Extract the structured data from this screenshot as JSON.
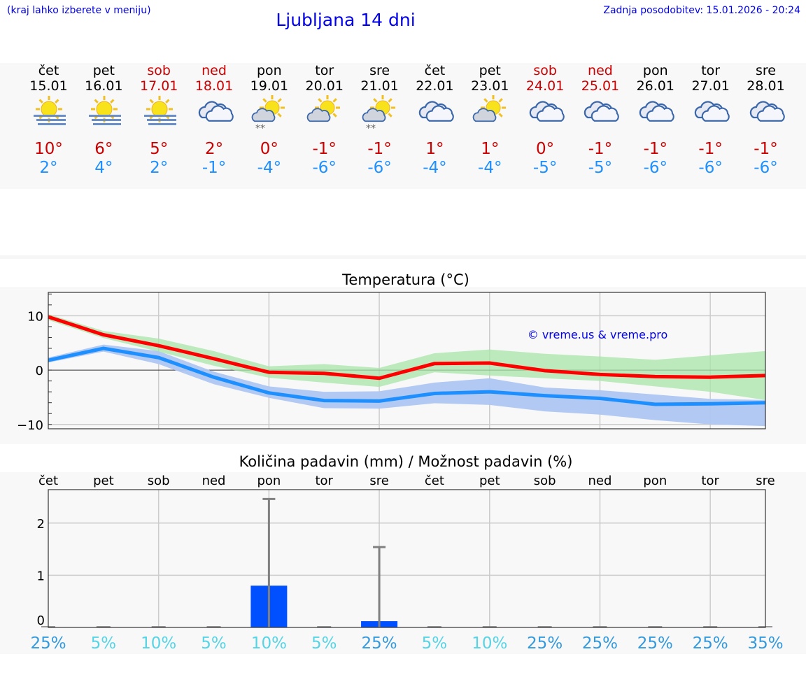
{
  "header": {
    "hint": "(kraj lahko izberete v meniju)",
    "title": "Ljubljana 14 dni",
    "updated": "Zadnja posodobitev: 15.01.2026 - 20:24"
  },
  "days": [
    {
      "name": "čet",
      "date": "15.01",
      "weekend": false,
      "icon": "sun-fog",
      "max": "10°",
      "min": "2°"
    },
    {
      "name": "pet",
      "date": "16.01",
      "weekend": false,
      "icon": "sun-fog",
      "max": "6°",
      "min": "4°"
    },
    {
      "name": "sob",
      "date": "17.01",
      "weekend": true,
      "icon": "sun-fog",
      "max": "5°",
      "min": "2°"
    },
    {
      "name": "ned",
      "date": "18.01",
      "weekend": true,
      "icon": "cloudy",
      "max": "2°",
      "min": "-1°"
    },
    {
      "name": "pon",
      "date": "19.01",
      "weekend": false,
      "icon": "partly-cloudy-snow",
      "max": "0°",
      "min": "-4°"
    },
    {
      "name": "tor",
      "date": "20.01",
      "weekend": false,
      "icon": "partly-cloudy",
      "max": "-1°",
      "min": "-6°"
    },
    {
      "name": "sre",
      "date": "21.01",
      "weekend": false,
      "icon": "partly-cloudy-snow",
      "max": "-1°",
      "min": "-6°"
    },
    {
      "name": "čet",
      "date": "22.01",
      "weekend": false,
      "icon": "cloudy",
      "max": "1°",
      "min": "-4°"
    },
    {
      "name": "pet",
      "date": "23.01",
      "weekend": false,
      "icon": "partly-cloudy",
      "max": "1°",
      "min": "-4°"
    },
    {
      "name": "sob",
      "date": "24.01",
      "weekend": true,
      "icon": "cloudy",
      "max": "0°",
      "min": "-5°"
    },
    {
      "name": "ned",
      "date": "25.01",
      "weekend": true,
      "icon": "cloudy",
      "max": "-1°",
      "min": "-5°"
    },
    {
      "name": "pon",
      "date": "26.01",
      "weekend": false,
      "icon": "cloudy",
      "max": "-1°",
      "min": "-6°"
    },
    {
      "name": "tor",
      "date": "27.01",
      "weekend": false,
      "icon": "cloudy",
      "max": "-1°",
      "min": "-6°"
    },
    {
      "name": "sre",
      "date": "28.01",
      "weekend": false,
      "icon": "cloudy",
      "max": "-1°",
      "min": "-6°"
    }
  ],
  "colors": {
    "max": "#cc0000",
    "min": "#1e90ff",
    "max_line": "#ff0000",
    "max_band": "#a8e6a8",
    "min_line": "#1e8fff",
    "min_band": "#adc6f2",
    "bar": "#0050ff",
    "error": "#808080",
    "pct_high": "#3399dd",
    "pct_low": "#55d4e6"
  },
  "chart_data": [
    {
      "type": "line",
      "title": "Temperatura (°C)",
      "watermark": "© vreme.us & vreme.pro",
      "ylim": [
        -10.8,
        14.3
      ],
      "yticks": [
        {
          "v": 10,
          "label": "10"
        },
        {
          "v": 0,
          "label": "0"
        },
        {
          "v": -10,
          "label": "−10"
        }
      ],
      "grid": true,
      "series": [
        {
          "name": "max",
          "values": [
            9.8,
            6.5,
            4.5,
            2.1,
            -0.4,
            -0.6,
            -1.5,
            1.2,
            1.3,
            -0.1,
            -0.8,
            -1.2,
            -1.3,
            -1.0
          ],
          "upper": [
            10.3,
            7.2,
            5.8,
            3.5,
            0.7,
            1.1,
            0.4,
            3.1,
            3.8,
            3.0,
            2.5,
            1.9,
            2.7,
            3.5
          ],
          "lower": [
            9.2,
            5.9,
            3.4,
            0.8,
            -1.4,
            -2.3,
            -3.1,
            -0.4,
            -1.0,
            -1.5,
            -2.0,
            -3.0,
            -4.0,
            -5.5
          ]
        },
        {
          "name": "min",
          "values": [
            1.8,
            4.0,
            2.3,
            -1.3,
            -4.2,
            -5.6,
            -5.7,
            -4.3,
            -4.0,
            -4.7,
            -5.2,
            -6.3,
            -6.2,
            -6.0
          ],
          "upper": [
            2.3,
            4.7,
            3.5,
            -0.3,
            -3.0,
            -4.0,
            -3.9,
            -2.3,
            -1.5,
            -3.2,
            -3.7,
            -4.5,
            -5.3,
            -5.5
          ],
          "lower": [
            1.4,
            3.4,
            1.1,
            -2.6,
            -5.1,
            -7.0,
            -7.1,
            -6.1,
            -6.4,
            -7.6,
            -8.2,
            -9.2,
            -10.0,
            -10.3
          ]
        }
      ]
    },
    {
      "type": "bar",
      "title": "Količina padavin (mm) / Možnost padavin (%)",
      "categories": [
        "čet",
        "pet",
        "sob",
        "ned",
        "pon",
        "tor",
        "sre",
        "čet",
        "pet",
        "sob",
        "ned",
        "pon",
        "tor",
        "sre"
      ],
      "values": [
        0,
        0,
        0,
        0,
        0.8,
        0,
        0.12,
        0,
        0,
        0,
        0,
        0,
        0,
        0
      ],
      "error_upper": [
        0,
        0,
        0,
        0,
        2.46,
        0,
        1.54,
        0,
        0,
        0,
        0,
        0,
        0,
        0
      ],
      "probability": [
        "25%",
        "5%",
        "10%",
        "5%",
        "10%",
        "5%",
        "25%",
        "5%",
        "10%",
        "25%",
        "25%",
        "25%",
        "25%",
        "35%"
      ],
      "ylim": [
        0,
        2.64
      ],
      "yticks": [
        {
          "v": 2,
          "label": "2"
        },
        {
          "v": 1,
          "label": "1"
        },
        {
          "v": 0,
          "label": "0"
        }
      ]
    }
  ]
}
